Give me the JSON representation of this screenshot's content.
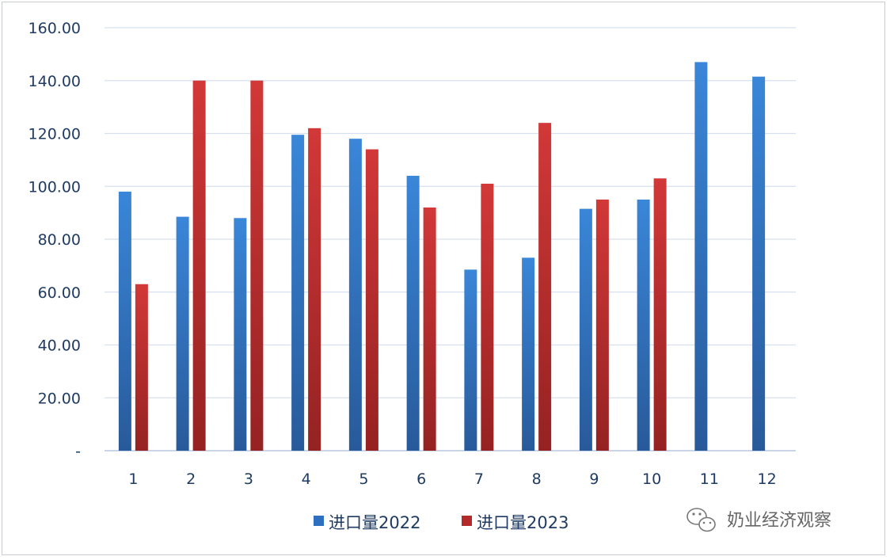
{
  "chart_data": {
    "type": "bar",
    "title": "",
    "xlabel": "",
    "ylabel": "",
    "categories": [
      "1",
      "2",
      "3",
      "4",
      "5",
      "6",
      "7",
      "8",
      "9",
      "10",
      "11",
      "12"
    ],
    "y_tick_labels": [
      "-",
      "20.00",
      "40.00",
      "60.00",
      "80.00",
      "100.00",
      "120.00",
      "140.00",
      "160.00"
    ],
    "ylim": [
      0,
      160
    ],
    "y_step": 20,
    "grid": true,
    "legend_position": "bottom",
    "series": [
      {
        "name": "进口量2022",
        "color": "#2f6fbf",
        "values": [
          98,
          88.5,
          88,
          119.5,
          118,
          104,
          68.5,
          73,
          91.5,
          95,
          147,
          141.5
        ]
      },
      {
        "name": "进口量2023",
        "color": "#b32a2a",
        "values": [
          63,
          140,
          140,
          122,
          114,
          92,
          101,
          124,
          95,
          103,
          null,
          null
        ]
      }
    ]
  },
  "watermark": {
    "text": "奶业经济观察",
    "icon": "wechat-icon"
  }
}
